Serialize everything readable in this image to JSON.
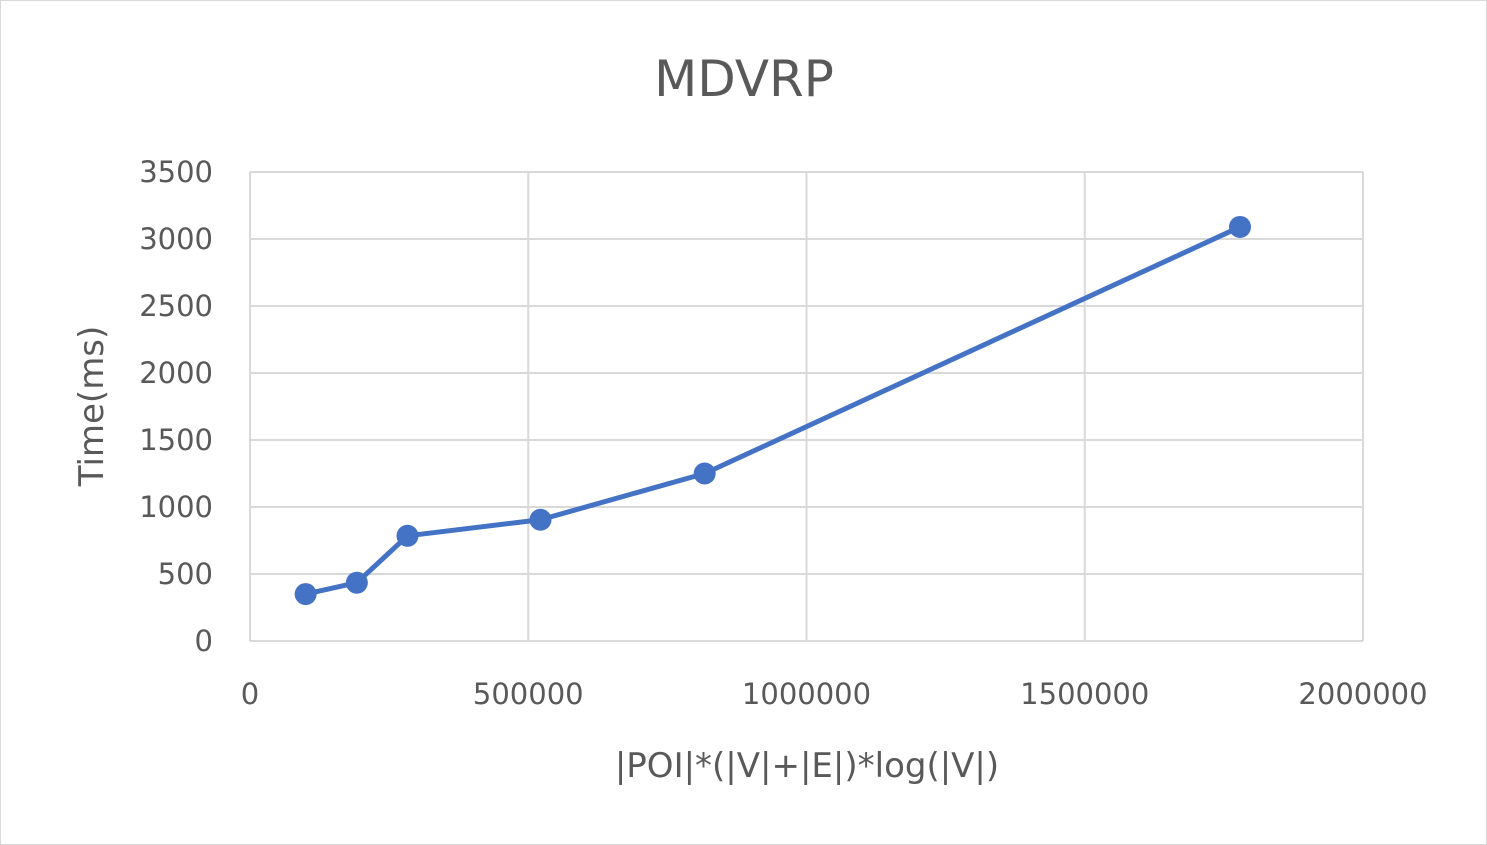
{
  "chart_data": {
    "type": "line",
    "title": "MDVRP",
    "xlabel": "|POI|*(|V|+|E|)*log(|V|)",
    "ylabel": "Time(ms)",
    "xlim": [
      0,
      2000000
    ],
    "ylim": [
      0,
      3500
    ],
    "x_ticks": [
      0,
      500000,
      1000000,
      1500000,
      2000000
    ],
    "y_ticks": [
      0,
      500,
      1000,
      1500,
      2000,
      2500,
      3000,
      3500
    ],
    "x_tick_labels": [
      "0",
      "500000",
      "1000000",
      "1500000",
      "2000000"
    ],
    "y_tick_labels": [
      "0",
      "500",
      "1000",
      "1500",
      "2000",
      "2500",
      "3000",
      "3500"
    ],
    "grid": true,
    "legend": "none",
    "series": [
      {
        "x": [
          100000,
          192000,
          283000,
          522000,
          817000,
          1779000
        ],
        "y": [
          350,
          435,
          785,
          905,
          1250,
          3090
        ],
        "color": "#4472c4",
        "marker": "circle"
      }
    ],
    "colors": {
      "series": "#4472c4",
      "grid": "#d9d9d9",
      "text": "#595959"
    }
  }
}
